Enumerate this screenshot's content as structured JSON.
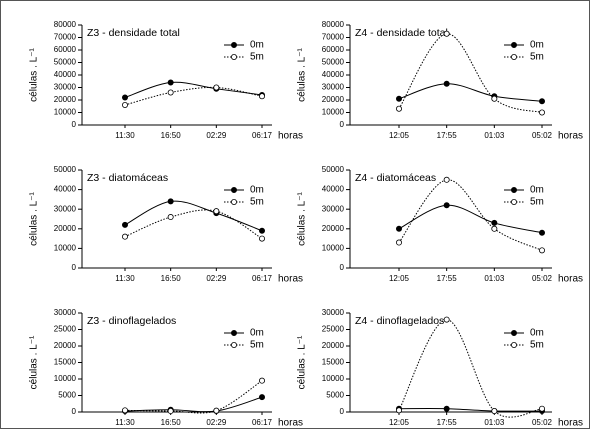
{
  "chart_data": [
    {
      "type": "line",
      "title": "Z3 - densidade total",
      "categories": [
        "11:30",
        "16:50",
        "02:29",
        "06:17"
      ],
      "x_label": "horas",
      "y_label": "células . L⁻¹",
      "ylim": [
        0,
        80000
      ],
      "yticks": [
        0,
        10000,
        20000,
        30000,
        40000,
        50000,
        60000,
        70000,
        80000
      ],
      "series": [
        {
          "name": "0m",
          "color": "#000000",
          "line_style": "solid",
          "marker_fill": "#000000",
          "values": [
            22000,
            34000,
            29000,
            24000
          ]
        },
        {
          "name": "5m",
          "color": "#000000",
          "line_style": "dotted",
          "marker_fill": "#ffffff",
          "values": [
            16000,
            26000,
            30000,
            23000
          ]
        }
      ]
    },
    {
      "type": "line",
      "title": "Z4 - densidade total",
      "categories": [
        "12:05",
        "17:55",
        "01:03",
        "05:02"
      ],
      "x_label": "horas",
      "y_label": "células . L⁻¹",
      "ylim": [
        0,
        80000
      ],
      "yticks": [
        0,
        10000,
        20000,
        30000,
        40000,
        50000,
        60000,
        70000,
        80000
      ],
      "series": [
        {
          "name": "0m",
          "color": "#000000",
          "line_style": "solid",
          "marker_fill": "#000000",
          "values": [
            21000,
            33000,
            23000,
            19000
          ]
        },
        {
          "name": "5m",
          "color": "#000000",
          "line_style": "dotted",
          "marker_fill": "#ffffff",
          "values": [
            13000,
            73000,
            21000,
            10000
          ]
        }
      ]
    },
    {
      "type": "line",
      "title": "Z3 - diatomáceas",
      "categories": [
        "11:30",
        "16:50",
        "02:29",
        "06:17"
      ],
      "x_label": "horas",
      "y_label": "células . L⁻¹",
      "ylim": [
        0,
        50000
      ],
      "yticks": [
        0,
        10000,
        20000,
        30000,
        40000,
        50000
      ],
      "series": [
        {
          "name": "0m",
          "color": "#000000",
          "line_style": "solid",
          "marker_fill": "#000000",
          "values": [
            22000,
            34000,
            28000,
            19000
          ]
        },
        {
          "name": "5m",
          "color": "#000000",
          "line_style": "dotted",
          "marker_fill": "#ffffff",
          "values": [
            16000,
            26000,
            29000,
            15000
          ]
        }
      ]
    },
    {
      "type": "line",
      "title": "Z4 - diatomáceas",
      "categories": [
        "12:05",
        "17:55",
        "01:03",
        "05:02"
      ],
      "x_label": "horas",
      "y_label": "células . L⁻¹",
      "ylim": [
        0,
        50000
      ],
      "yticks": [
        0,
        10000,
        20000,
        30000,
        40000,
        50000
      ],
      "series": [
        {
          "name": "0m",
          "color": "#000000",
          "line_style": "solid",
          "marker_fill": "#000000",
          "values": [
            20000,
            32000,
            23000,
            18000
          ]
        },
        {
          "name": "5m",
          "color": "#000000",
          "line_style": "dotted",
          "marker_fill": "#ffffff",
          "values": [
            13000,
            45000,
            20000,
            9000
          ]
        }
      ]
    },
    {
      "type": "line",
      "title": "Z3 - dinoflagelados",
      "categories": [
        "11:30",
        "16:50",
        "02:29",
        "06:17"
      ],
      "x_label": "horas",
      "y_label": "células . L⁻¹",
      "ylim": [
        0,
        30000
      ],
      "yticks": [
        0,
        5000,
        10000,
        15000,
        20000,
        25000,
        30000
      ],
      "series": [
        {
          "name": "0m",
          "color": "#000000",
          "line_style": "solid",
          "marker_fill": "#000000",
          "values": [
            300,
            700,
            300,
            4500
          ]
        },
        {
          "name": "5m",
          "color": "#000000",
          "line_style": "dotted",
          "marker_fill": "#ffffff",
          "values": [
            500,
            300,
            400,
            9500
          ]
        }
      ]
    },
    {
      "type": "line",
      "title": "Z4 - dinoflagelados",
      "categories": [
        "12:05",
        "17:55",
        "01:03",
        "05:02"
      ],
      "x_label": "horas",
      "y_label": "células . L⁻¹",
      "ylim": [
        0,
        30000
      ],
      "yticks": [
        0,
        5000,
        10000,
        15000,
        20000,
        25000,
        30000
      ],
      "series": [
        {
          "name": "0m",
          "color": "#000000",
          "line_style": "solid",
          "marker_fill": "#000000",
          "values": [
            1000,
            1000,
            300,
            300
          ]
        },
        {
          "name": "5m",
          "color": "#000000",
          "line_style": "dotted",
          "marker_fill": "#ffffff",
          "values": [
            500,
            28000,
            300,
            1000
          ]
        }
      ]
    }
  ]
}
